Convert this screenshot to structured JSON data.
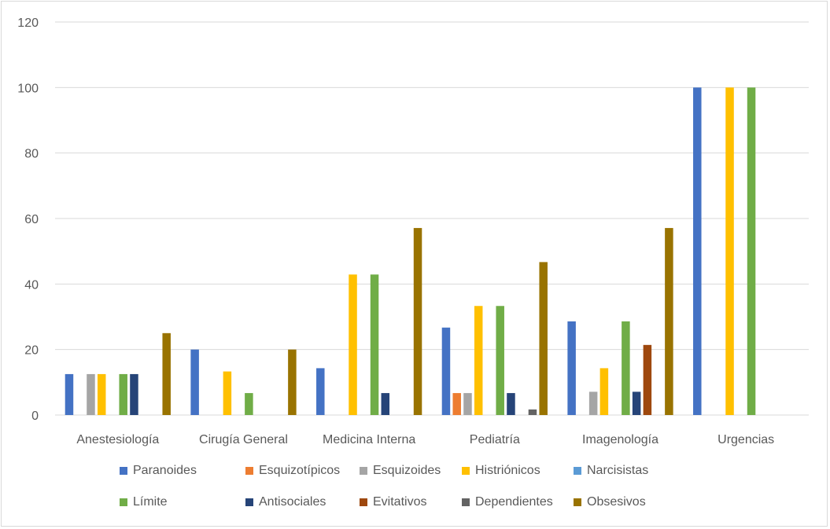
{
  "chart_data": {
    "type": "bar",
    "ylim": [
      0,
      120
    ],
    "yticks": [
      0,
      20,
      40,
      60,
      80,
      100,
      120
    ],
    "grid": true,
    "legend_position": "bottom",
    "categories": [
      "Anestesiología",
      "Cirugía General",
      "Medicina Interna",
      "Pediatría",
      "Imagenología",
      "Urgencias"
    ],
    "series": [
      {
        "name": "Paranoides",
        "color": "#4472C4",
        "values": [
          12.5,
          20,
          14.3,
          26.7,
          28.6,
          100
        ]
      },
      {
        "name": "Esquizotípicos",
        "color": "#ED7D31",
        "values": [
          0,
          0,
          0,
          6.7,
          0,
          0
        ]
      },
      {
        "name": "Esquizoides",
        "color": "#A5A5A5",
        "values": [
          12.5,
          0,
          0,
          6.7,
          7.1,
          0
        ]
      },
      {
        "name": "Histriónicos",
        "color": "#FFC000",
        "values": [
          12.5,
          13.3,
          42.9,
          33.3,
          14.3,
          100
        ]
      },
      {
        "name": "Narcisistas",
        "color": "#5B9BD5",
        "values": [
          0,
          0,
          0,
          0,
          0,
          0
        ]
      },
      {
        "name": "Límite",
        "color": "#70AD47",
        "values": [
          12.5,
          6.7,
          42.9,
          33.3,
          28.6,
          100
        ]
      },
      {
        "name": "Antisociales",
        "color": "#264478",
        "values": [
          12.5,
          0,
          6.7,
          6.7,
          7.1,
          0
        ]
      },
      {
        "name": "Evitativos",
        "color": "#9E480E",
        "values": [
          0,
          0,
          0,
          0,
          21.4,
          0
        ]
      },
      {
        "name": "Dependientes",
        "color": "#636363",
        "values": [
          0,
          0,
          0,
          1.7,
          0,
          0
        ]
      },
      {
        "name": "Obsesivos",
        "color": "#997300",
        "values": [
          25,
          20,
          57.1,
          46.7,
          57.1,
          0
        ]
      }
    ]
  }
}
